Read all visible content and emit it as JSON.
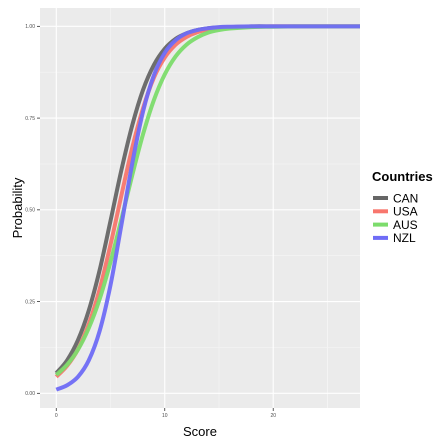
{
  "chart_data": {
    "type": "line",
    "xlabel": "Score",
    "ylabel": "Probability",
    "xlim": [
      -1.5,
      28
    ],
    "ylim": [
      -0.04,
      1.05
    ],
    "x_ticks": [
      0,
      10,
      20
    ],
    "x_tick_labels": [
      "0",
      "10",
      "20"
    ],
    "y_ticks": [
      0,
      0.25,
      0.5,
      0.75,
      1.0
    ],
    "y_tick_labels": [
      "0.00",
      "0.25",
      "0.50",
      "0.75",
      "1.00"
    ],
    "grid": true,
    "legend": {
      "title": "Countries",
      "placement": "right"
    },
    "x": [
      0,
      1,
      2,
      3,
      4,
      5,
      6,
      7,
      8,
      9,
      10,
      11,
      12,
      13,
      14,
      15,
      16,
      18,
      20,
      22,
      24,
      26,
      28
    ],
    "series": [
      {
        "name": "CAN",
        "color": "#666666",
        "values": [
          0.055,
          0.09,
          0.145,
          0.226,
          0.336,
          0.47,
          0.608,
          0.73,
          0.827,
          0.895,
          0.939,
          0.966,
          0.981,
          0.99,
          0.995,
          0.997,
          0.998,
          1.0,
          1.0,
          1.0,
          1.0,
          1.0,
          1.0
        ]
      },
      {
        "name": "USA",
        "color": "#f8766d",
        "values": [
          0.045,
          0.075,
          0.12,
          0.189,
          0.284,
          0.405,
          0.539,
          0.669,
          0.777,
          0.86,
          0.915,
          0.95,
          0.971,
          0.984,
          0.991,
          0.995,
          0.997,
          0.999,
          1.0,
          1.0,
          1.0,
          1.0,
          1.0
        ]
      },
      {
        "name": "AUS",
        "color": "#7cdc6c",
        "values": [
          0.05,
          0.078,
          0.119,
          0.178,
          0.257,
          0.358,
          0.474,
          0.594,
          0.706,
          0.799,
          0.869,
          0.918,
          0.95,
          0.97,
          0.983,
          0.99,
          0.994,
          0.998,
          0.999,
          1.0,
          1.0,
          1.0,
          1.0
        ]
      },
      {
        "name": "NZL",
        "color": "#6f6cf6",
        "values": [
          0.01,
          0.022,
          0.045,
          0.09,
          0.17,
          0.295,
          0.458,
          0.626,
          0.768,
          0.867,
          0.928,
          0.962,
          0.981,
          0.99,
          0.995,
          0.998,
          0.999,
          1.0,
          1.0,
          1.0,
          1.0,
          1.0,
          1.0
        ]
      }
    ]
  }
}
